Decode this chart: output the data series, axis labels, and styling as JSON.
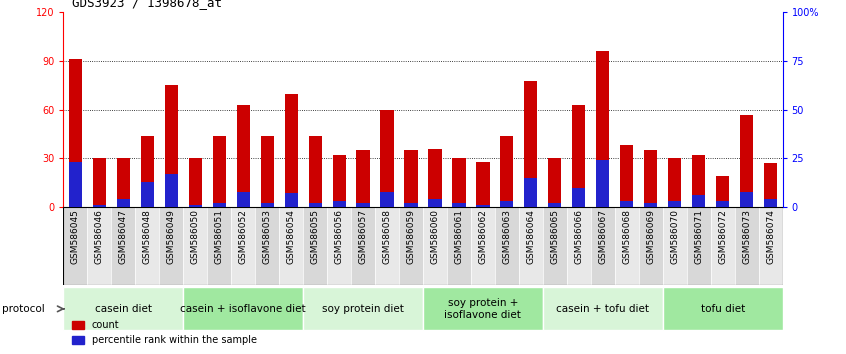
{
  "title": "GDS3923 / 1398678_at",
  "samples": [
    "GSM586045",
    "GSM586046",
    "GSM586047",
    "GSM586048",
    "GSM586049",
    "GSM586050",
    "GSM586051",
    "GSM586052",
    "GSM586053",
    "GSM586054",
    "GSM586055",
    "GSM586056",
    "GSM586057",
    "GSM586058",
    "GSM586059",
    "GSM586060",
    "GSM586061",
    "GSM586062",
    "GSM586063",
    "GSM586064",
    "GSM586065",
    "GSM586066",
    "GSM586067",
    "GSM586068",
    "GSM586069",
    "GSM586070",
    "GSM586071",
    "GSM586072",
    "GSM586073",
    "GSM586074"
  ],
  "count": [
    91,
    30,
    30,
    44,
    75,
    30,
    44,
    63,
    44,
    70,
    44,
    32,
    35,
    60,
    35,
    36,
    30,
    28,
    44,
    78,
    30,
    63,
    96,
    38,
    35,
    30,
    32,
    19,
    57,
    27
  ],
  "percentile": [
    23,
    1,
    4,
    13,
    17,
    1,
    2,
    8,
    2,
    7,
    2,
    3,
    2,
    8,
    2,
    4,
    2,
    1,
    3,
    15,
    2,
    10,
    24,
    3,
    2,
    3,
    6,
    3,
    8,
    4
  ],
  "groups": [
    {
      "label": "casein diet",
      "start": 0,
      "end": 5,
      "color": "#d8f5d8"
    },
    {
      "label": "casein + isoflavone diet",
      "start": 5,
      "end": 10,
      "color": "#a0e8a0"
    },
    {
      "label": "soy protein diet",
      "start": 10,
      "end": 15,
      "color": "#d8f5d8"
    },
    {
      "label": "soy protein +\nisoflavone diet",
      "start": 15,
      "end": 20,
      "color": "#a0e8a0"
    },
    {
      "label": "casein + tofu diet",
      "start": 20,
      "end": 25,
      "color": "#d8f5d8"
    },
    {
      "label": "tofu diet",
      "start": 25,
      "end": 30,
      "color": "#a0e8a0"
    }
  ],
  "ylim_left": [
    0,
    120
  ],
  "ylim_right": [
    0,
    100
  ],
  "yticks_left": [
    0,
    30,
    60,
    90,
    120
  ],
  "yticks_right": [
    0,
    25,
    50,
    75,
    100
  ],
  "ytick_labels_right": [
    "0",
    "25",
    "50",
    "75",
    "100%"
  ],
  "bar_color_count": "#cc0000",
  "bar_color_pct": "#2222cc",
  "bar_width": 0.55,
  "title_fontsize": 9,
  "tick_fontsize": 7,
  "group_label_fontsize": 7.5,
  "protocol_label": "protocol",
  "legend_count_label": "count",
  "legend_pct_label": "percentile rank within the sample",
  "gridline_color": "#000000",
  "gridline_lw": 0.6,
  "gridline_style": ":",
  "grid_vals": [
    30,
    60,
    90
  ]
}
